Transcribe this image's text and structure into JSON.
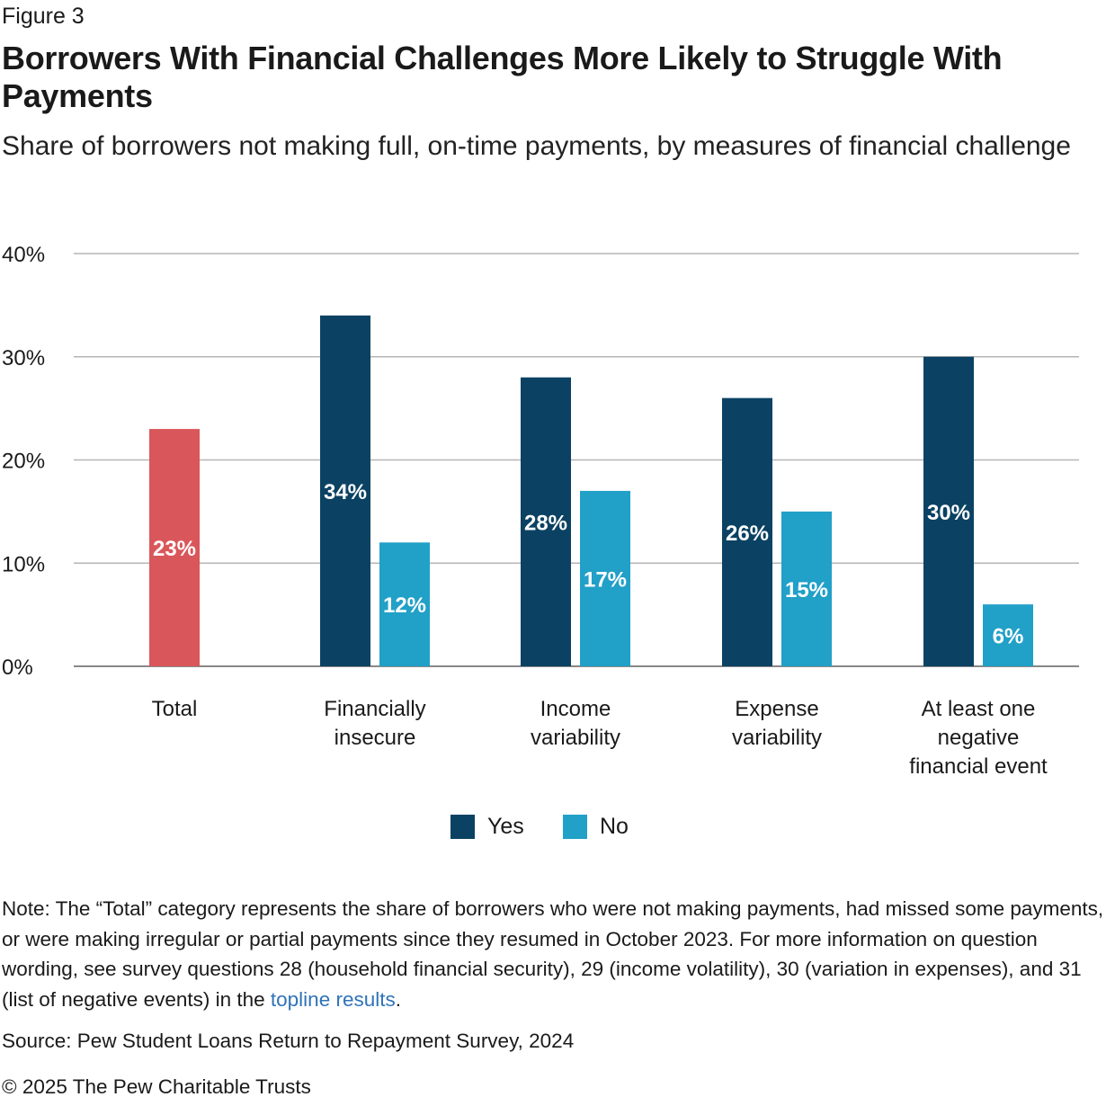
{
  "figure_label": "Figure 3",
  "note": {
    "text_before_link": "Note: The “Total” category represents the share of borrowers who were not making payments, had missed some payments, or were making irregular or partial payments since they resumed in October 2023. For more information on question wording, see survey questions 28 (household financial security), 29 (income volatility), 30 (variation in expenses), and 31 (list of negative events) in the ",
    "link_text": "topline results",
    "text_after_link": "."
  },
  "source": "Source: Pew Student Loans Return to Repayment Survey, 2024",
  "copyright": "© 2025 The Pew Charitable Trusts",
  "colors": {
    "total": "#d9575a",
    "yes": "#0b4263",
    "no": "#21a0c8",
    "grid": "#b5b5b5",
    "axis": "#888888",
    "link": "#2f73b8"
  },
  "chart_data": {
    "type": "bar",
    "title": "Borrowers With Financial Challenges More Likely to Struggle With Payments",
    "subtitle": "Share of borrowers not making full, on-time payments, by measures of financial challenge",
    "categories": [
      [
        "Total"
      ],
      [
        "Financially",
        "insecure"
      ],
      [
        "Income",
        "variability"
      ],
      [
        "Expense",
        "variability"
      ],
      [
        "At least one",
        "negative",
        "financial event"
      ]
    ],
    "total": {
      "value": 23,
      "label": "23%"
    },
    "series": [
      {
        "name": "Yes",
        "values": [
          null,
          34,
          28,
          26,
          30
        ],
        "labels": [
          "",
          "34%",
          "28%",
          "26%",
          "30%"
        ]
      },
      {
        "name": "No",
        "values": [
          null,
          12,
          17,
          15,
          6
        ],
        "labels": [
          "",
          "12%",
          "17%",
          "15%",
          "6%"
        ]
      }
    ],
    "yticks": [
      "0%",
      "10%",
      "20%",
      "30%",
      "40%"
    ],
    "ylim": [
      0,
      40
    ],
    "grid": true,
    "legend": "bottom-center",
    "xlabel": "",
    "ylabel": ""
  }
}
